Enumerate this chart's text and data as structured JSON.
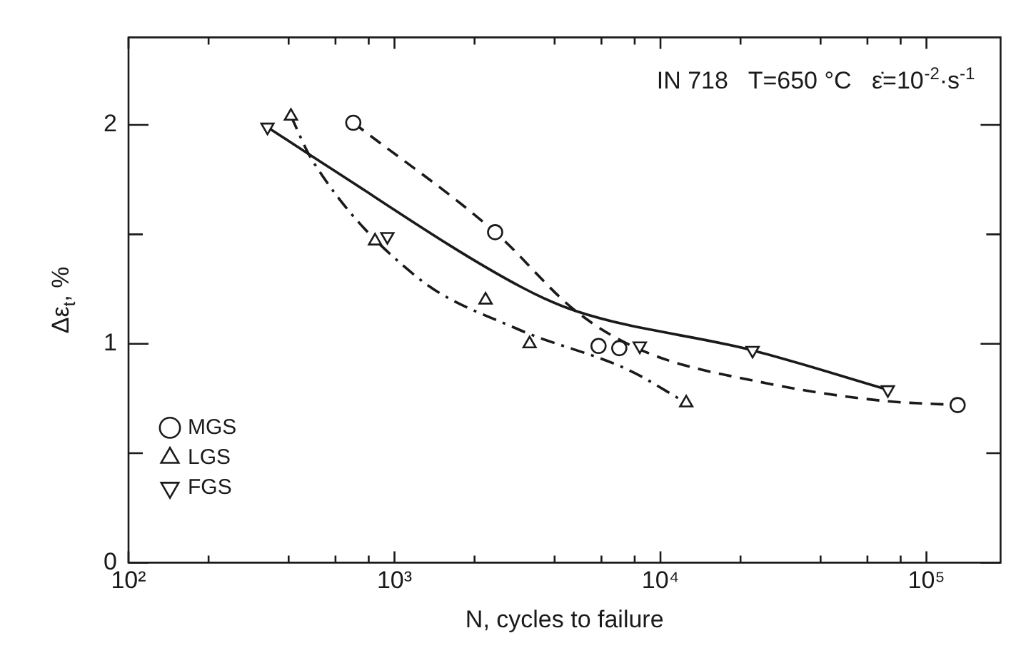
{
  "chart_data": {
    "type": "scatter",
    "xlabel": "N, cycles to failure",
    "ylabel": "Δε$_{t}$, %",
    "annotations": [
      "IN 718   T=650 °C   ε̇=10$^{-2}$·s$^{-1}$"
    ],
    "log": "x",
    "xlim": [
      100,
      190000
    ],
    "xticks": [
      {
        "value": 100,
        "label": "10²"
      },
      {
        "value": 200,
        "label": null
      },
      {
        "value": 400,
        "label": null
      },
      {
        "value": 600,
        "label": null
      },
      {
        "value": 800,
        "label": null
      },
      {
        "value": 1000,
        "label": "10³"
      },
      {
        "value": 2000,
        "label": null
      },
      {
        "value": 4000,
        "label": null
      },
      {
        "value": 6000,
        "label": null
      },
      {
        "value": 8000,
        "label": null
      },
      {
        "value": 10000,
        "label": "10⁴"
      },
      {
        "value": 20000,
        "label": null
      },
      {
        "value": 40000,
        "label": null
      },
      {
        "value": 60000,
        "label": null
      },
      {
        "value": 80000,
        "label": null
      },
      {
        "value": 100000,
        "label": "10⁵"
      }
    ],
    "ylim": [
      0,
      2.4
    ],
    "yticks": [
      0,
      {
        "value": 0.5,
        "label": null
      },
      1,
      {
        "value": 1.5,
        "label": null
      },
      2
    ],
    "grid": false,
    "legend": "bottom left",
    "series": [
      {
        "name": "MGS",
        "type": "scatter",
        "marker": "circle",
        "color": "#1a1a1a",
        "x": [
          700,
          2390,
          5850,
          7000,
          131000
        ],
        "values": [
          2.01,
          1.51,
          0.99,
          0.98,
          0.72
        ]
      },
      {
        "type": "line",
        "line_style": "dashed",
        "marker": "none",
        "color": "#1a1a1a",
        "x": [
          700,
          2390,
          4800,
          8500,
          25000,
          68000,
          131000
        ],
        "values": [
          2.01,
          1.51,
          1.15,
          0.97,
          0.82,
          0.74,
          0.72
        ]
      },
      {
        "name": "LGS",
        "type": "scatter",
        "marker": "triangle",
        "color": "#1a1a1a",
        "x": [
          408,
          845,
          2200,
          3220,
          12500
        ],
        "values": [
          2.04,
          1.47,
          1.2,
          1.0,
          0.73
        ]
      },
      {
        "type": "line",
        "line_style": "dashdot",
        "marker": "none",
        "color": "#1a1a1a",
        "x": [
          408,
          490,
          1200,
          2870,
          7600,
          12500
        ],
        "values": [
          2.04,
          1.84,
          1.31,
          1.07,
          0.88,
          0.73
        ]
      },
      {
        "name": "FGS",
        "type": "scatter",
        "marker": "triangle-down",
        "color": "#1a1a1a",
        "x": [
          333,
          940,
          8360,
          22200,
          71600
        ],
        "values": [
          1.99,
          1.49,
          0.99,
          0.97,
          0.79
        ]
      },
      {
        "type": "line",
        "line_style": "solid",
        "marker": "none",
        "color": "#1a1a1a",
        "x": [
          333,
          530,
          2990,
          4800,
          22200,
          71600
        ],
        "values": [
          1.99,
          1.83,
          1.26,
          1.15,
          0.97,
          0.79
        ]
      }
    ]
  }
}
